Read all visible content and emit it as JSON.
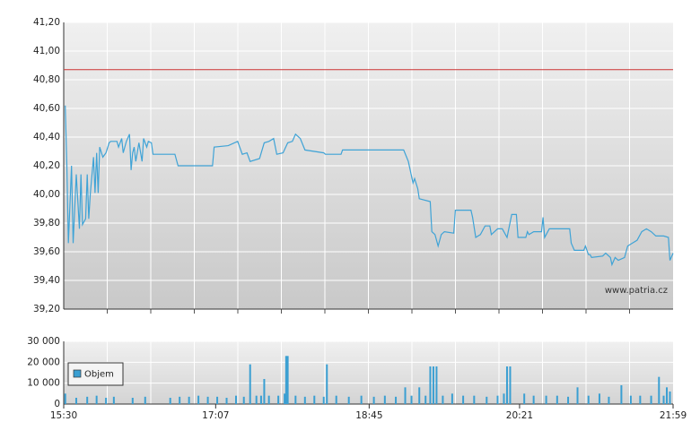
{
  "chart_data": [
    {
      "type": "line",
      "color": "#3fa3d6",
      "watermark": "www.patria.cz",
      "reference_line": {
        "value": 40.87,
        "color": "#cc3333"
      },
      "xlim": [
        "15:30",
        "21:59"
      ],
      "ylim": [
        39.2,
        41.2
      ],
      "yticks": [
        {
          "value": 39.2,
          "label": "39,20"
        },
        {
          "value": 39.4,
          "label": "39,40"
        },
        {
          "value": 39.6,
          "label": "39,60"
        },
        {
          "value": 39.8,
          "label": "39,80"
        },
        {
          "value": 40.0,
          "label": "40,00"
        },
        {
          "value": 40.2,
          "label": "40,20"
        },
        {
          "value": 40.4,
          "label": "40,40"
        },
        {
          "value": 40.6,
          "label": "40,60"
        },
        {
          "value": 40.8,
          "label": "40,80"
        },
        {
          "value": 41.0,
          "label": "41,00"
        },
        {
          "value": 41.2,
          "label": "41,20"
        }
      ],
      "grid": true,
      "x": [
        "15:31",
        "15:32",
        "15:33",
        "15:35",
        "15:36",
        "15:38",
        "15:40",
        "15:41",
        "15:42",
        "15:44",
        "15:45",
        "15:46",
        "15:47",
        "15:49",
        "15:50",
        "15:51",
        "15:52",
        "15:53",
        "15:55",
        "15:57",
        "15:59",
        "16:00",
        "16:04",
        "16:05",
        "16:07",
        "16:08",
        "16:10",
        "16:12",
        "16:13",
        "16:14",
        "16:15",
        "16:16",
        "16:18",
        "16:20",
        "16:21",
        "16:23",
        "16:24",
        "16:26",
        "16:27",
        "16:41",
        "16:43",
        "17:05",
        "17:06",
        "17:15",
        "17:21",
        "17:24",
        "17:27",
        "17:29",
        "17:35",
        "17:38",
        "17:41",
        "17:44",
        "17:46",
        "17:50",
        "17:53",
        "17:56",
        "17:58",
        "18:01",
        "18:04",
        "18:16",
        "18:17",
        "18:27",
        "18:28",
        "19:07",
        "19:10",
        "19:13",
        "19:14",
        "19:16",
        "19:17",
        "19:24",
        "19:25",
        "19:27",
        "19:29",
        "19:31",
        "19:33",
        "19:39",
        "19:40",
        "19:50",
        "19:51",
        "19:53",
        "19:56",
        "19:59",
        "20:02",
        "20:03",
        "20:07",
        "20:10",
        "20:13",
        "20:16",
        "20:19",
        "20:20",
        "20:25",
        "20:26",
        "20:27",
        "20:30",
        "20:35",
        "20:36",
        "20:37",
        "20:40",
        "20:53",
        "20:54",
        "20:56",
        "21:02",
        "21:03",
        "21:05",
        "21:06",
        "21:07",
        "21:14",
        "21:16",
        "21:19",
        "21:20",
        "21:22",
        "21:24",
        "21:28",
        "21:30",
        "21:33",
        "21:36",
        "21:39",
        "21:42",
        "21:45",
        "21:48",
        "21:53",
        "21:56",
        "21:57",
        "21:59"
      ],
      "values": [
        40.62,
        40.2,
        39.66,
        40.2,
        39.66,
        40.14,
        39.76,
        40.14,
        39.79,
        39.83,
        40.14,
        39.83,
        40.01,
        40.26,
        40.01,
        40.29,
        40.01,
        40.33,
        40.26,
        40.29,
        40.36,
        40.37,
        40.37,
        40.33,
        40.39,
        40.29,
        40.37,
        40.42,
        40.17,
        40.29,
        40.33,
        40.23,
        40.36,
        40.23,
        40.39,
        40.33,
        40.37,
        40.36,
        40.28,
        40.28,
        40.2,
        40.2,
        40.33,
        40.34,
        40.37,
        40.28,
        40.29,
        40.23,
        40.25,
        40.36,
        40.37,
        40.39,
        40.28,
        40.29,
        40.36,
        40.37,
        40.42,
        40.39,
        40.31,
        40.29,
        40.28,
        40.28,
        40.31,
        40.31,
        40.23,
        40.08,
        40.11,
        40.04,
        39.97,
        39.95,
        39.74,
        39.72,
        39.64,
        39.72,
        39.74,
        39.73,
        39.89,
        39.89,
        39.84,
        39.7,
        39.72,
        39.78,
        39.78,
        39.72,
        39.76,
        39.76,
        39.7,
        39.86,
        39.86,
        39.7,
        39.7,
        39.74,
        39.72,
        39.74,
        39.74,
        39.84,
        39.7,
        39.76,
        39.76,
        39.66,
        39.61,
        39.61,
        39.64,
        39.58,
        39.58,
        39.56,
        39.57,
        39.59,
        39.56,
        39.51,
        39.56,
        39.54,
        39.56,
        39.64,
        39.66,
        39.68,
        39.74,
        39.76,
        39.74,
        39.71,
        39.71,
        39.7,
        39.54,
        39.59
      ]
    },
    {
      "type": "bar",
      "xlim": [
        "15:30",
        "21:59"
      ],
      "xticks": [
        "15:30",
        "17:07",
        "18:45",
        "20:21",
        "21:59"
      ],
      "ylim": [
        0,
        30000
      ],
      "yticks": [
        0,
        {
          "value": 10000,
          "label": "10 000"
        },
        {
          "value": 20000,
          "label": "20 000"
        },
        {
          "value": 30000,
          "label": "30 000"
        }
      ],
      "grid": true,
      "legend": "upper left",
      "x": [
        "15:31",
        "15:38",
        "15:45",
        "15:51",
        "15:57",
        "16:02",
        "16:14",
        "16:22",
        "16:38",
        "16:44",
        "16:50",
        "16:56",
        "17:02",
        "17:08",
        "17:14",
        "17:20",
        "17:25",
        "17:29",
        "17:33",
        "17:36",
        "17:38",
        "17:41",
        "17:47",
        "17:51",
        "17:52",
        "17:53",
        "17:58",
        "18:04",
        "18:10",
        "18:16",
        "18:18",
        "18:24",
        "18:32",
        "18:40",
        "18:48",
        "18:55",
        "19:02",
        "19:08",
        "19:12",
        "19:17",
        "19:21",
        "19:24",
        "19:26",
        "19:28",
        "19:32",
        "19:38",
        "19:45",
        "19:52",
        "20:00",
        "20:07",
        "20:11",
        "20:13",
        "20:15",
        "20:24",
        "20:30",
        "20:38",
        "20:45",
        "20:52",
        "20:58",
        "21:05",
        "21:12",
        "21:18",
        "21:26",
        "21:32",
        "21:38",
        "21:45",
        "21:50",
        "21:53",
        "21:55",
        "21:57"
      ],
      "series": [
        {
          "name": "Objem",
          "color": "#3a9fd2",
          "values": [
            5000,
            3000,
            3500,
            4000,
            3000,
            3500,
            3000,
            3500,
            3000,
            3500,
            3500,
            4000,
            3500,
            3500,
            3000,
            4000,
            3500,
            19000,
            4000,
            4000,
            12000,
            4000,
            4000,
            5000,
            23000,
            23000,
            4000,
            3500,
            4000,
            3500,
            19000,
            4000,
            3500,
            4000,
            3500,
            4000,
            3500,
            8000,
            4000,
            8000,
            4000,
            18000,
            18000,
            18000,
            4000,
            5000,
            4000,
            4000,
            3500,
            4000,
            5000,
            18000,
            18000,
            5000,
            4000,
            4000,
            4000,
            3500,
            8000,
            4000,
            5000,
            3500,
            9000,
            4000,
            4000,
            4000,
            13000,
            4000,
            8000,
            6000
          ]
        }
      ]
    }
  ]
}
